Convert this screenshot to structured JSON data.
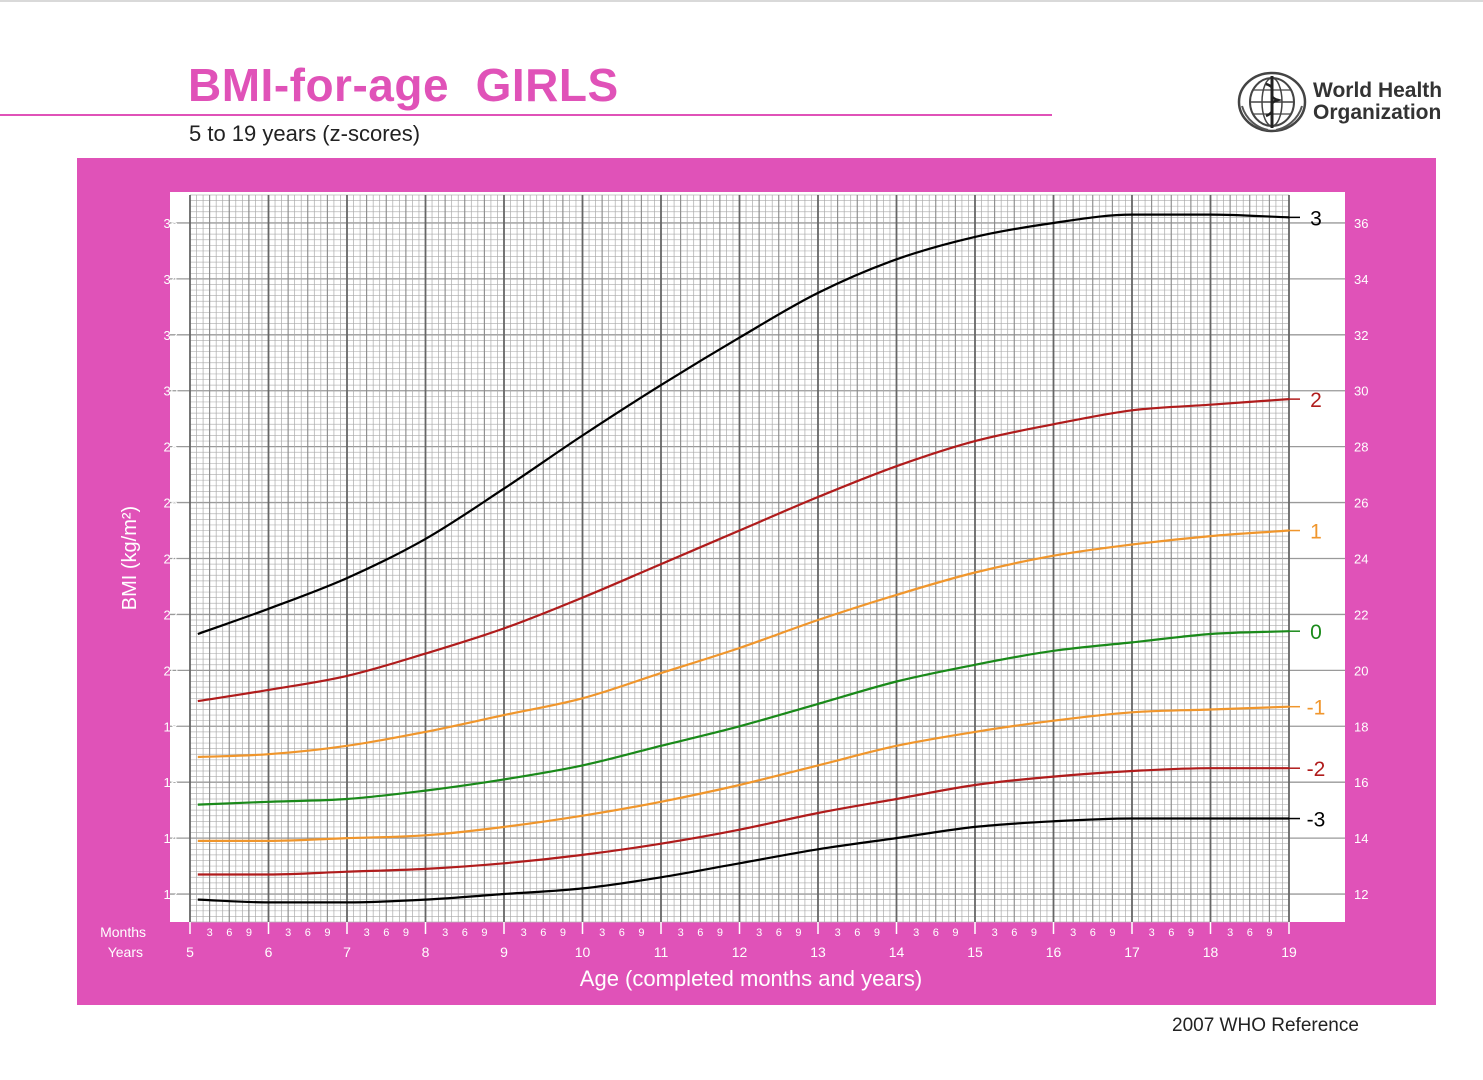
{
  "header": {
    "title": "BMI-for-age  GIRLS",
    "subtitle": "5 to 19 years (z-scores)",
    "org_line1": "World Health",
    "org_line2": "Organization",
    "logo_icon": "who-emblem-icon"
  },
  "footer": {
    "reference": "2007 WHO Reference"
  },
  "colors": {
    "frame": "#e052b8",
    "z3": "#000000",
    "z2": "#b01c1c",
    "z1": "#f0962c",
    "z0": "#1a8a1a"
  },
  "chart_data": {
    "type": "line",
    "xlabel": "Age (completed months and years)",
    "ylabel": "BMI (kg/m²)",
    "x_row_labels": {
      "months": "Months",
      "years": "Years"
    },
    "xlim": [
      5,
      19
    ],
    "ylim": [
      11,
      37
    ],
    "year_ticks": [
      "5",
      "6",
      "7",
      "8",
      "9",
      "10",
      "11",
      "12",
      "13",
      "14",
      "15",
      "16",
      "17",
      "18",
      "19"
    ],
    "month_ticks": [
      "3",
      "6",
      "9"
    ],
    "y_ticks": [
      "12",
      "14",
      "16",
      "18",
      "20",
      "22",
      "24",
      "26",
      "28",
      "30",
      "32",
      "34",
      "36"
    ],
    "grid": true,
    "x": [
      5,
      6,
      7,
      8,
      9,
      10,
      11,
      12,
      13,
      14,
      15,
      16,
      17,
      18,
      19
    ],
    "series": [
      {
        "name": "3",
        "color": "#000000",
        "values": [
          21.3,
          22.2,
          23.3,
          24.7,
          26.5,
          28.4,
          30.2,
          31.9,
          33.5,
          34.7,
          35.5,
          36.0,
          36.3,
          36.3,
          36.2
        ]
      },
      {
        "name": "2",
        "color": "#b01c1c",
        "values": [
          18.9,
          19.3,
          19.8,
          20.6,
          21.5,
          22.6,
          23.8,
          25.0,
          26.2,
          27.3,
          28.2,
          28.8,
          29.3,
          29.5,
          29.7
        ]
      },
      {
        "name": "1",
        "color": "#f0962c",
        "values": [
          16.9,
          17.0,
          17.3,
          17.8,
          18.4,
          19.0,
          19.9,
          20.8,
          21.8,
          22.7,
          23.5,
          24.1,
          24.5,
          24.8,
          25.0
        ]
      },
      {
        "name": "0",
        "color": "#1a8a1a",
        "values": [
          15.2,
          15.3,
          15.4,
          15.7,
          16.1,
          16.6,
          17.3,
          18.0,
          18.8,
          19.6,
          20.2,
          20.7,
          21.0,
          21.3,
          21.4
        ]
      },
      {
        "name": "-1",
        "color": "#f0962c",
        "values": [
          13.9,
          13.9,
          14.0,
          14.1,
          14.4,
          14.8,
          15.3,
          15.9,
          16.6,
          17.3,
          17.8,
          18.2,
          18.5,
          18.6,
          18.7
        ]
      },
      {
        "name": "-2",
        "color": "#b01c1c",
        "values": [
          12.7,
          12.7,
          12.8,
          12.9,
          13.1,
          13.4,
          13.8,
          14.3,
          14.9,
          15.4,
          15.9,
          16.2,
          16.4,
          16.5,
          16.5
        ]
      },
      {
        "name": "-3",
        "color": "#000000",
        "values": [
          11.8,
          11.7,
          11.7,
          11.8,
          12.0,
          12.2,
          12.6,
          13.1,
          13.6,
          14.0,
          14.4,
          14.6,
          14.7,
          14.7,
          14.7
        ]
      }
    ]
  }
}
